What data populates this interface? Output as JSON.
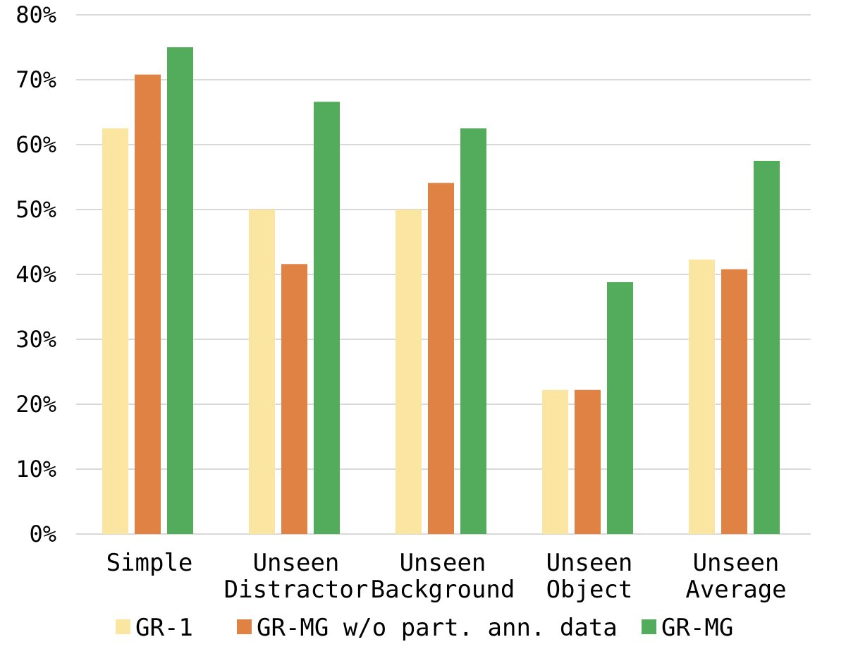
{
  "chart_data": {
    "type": "bar",
    "categories": [
      [
        "Simple"
      ],
      [
        "Unseen",
        "Distractor"
      ],
      [
        "Unseen",
        "Background"
      ],
      [
        "Unseen",
        "Object"
      ],
      [
        "Unseen",
        "Average"
      ]
    ],
    "series": [
      {
        "name": "GR-1",
        "color": "#FAE5A1",
        "values": [
          62.5,
          50.0,
          50.0,
          22.2,
          42.3
        ]
      },
      {
        "name": "GR-MG w/o part. ann. data",
        "color": "#E08244",
        "values": [
          70.8,
          41.6,
          54.1,
          22.2,
          40.8
        ]
      },
      {
        "name": "GR-MG",
        "color": "#52AC5B",
        "values": [
          75.0,
          66.6,
          62.5,
          38.8,
          57.5
        ]
      }
    ],
    "ylim": [
      0,
      80
    ],
    "yticks": [
      0,
      10,
      20,
      30,
      40,
      50,
      60,
      70,
      80
    ],
    "ytick_labels": [
      "0%",
      "10%",
      "20%",
      "30%",
      "40%",
      "50%",
      "60%",
      "70%",
      "80%"
    ],
    "grid": true,
    "gridline_color": "#D9D9D9",
    "legend_position": "bottom",
    "title": "",
    "xlabel": "",
    "ylabel": ""
  }
}
